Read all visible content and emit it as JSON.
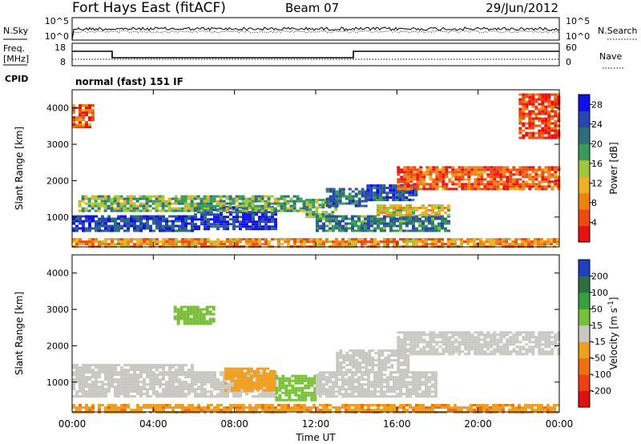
{
  "header": {
    "station": "Fort Hays East (fitACF)",
    "beam": "Beam 07",
    "date": "29/Jun/2012"
  },
  "noise_panel": {
    "left_label": "N.Sky",
    "right_label": "N.Search",
    "left_ticks": [
      "10^5",
      "10^0"
    ],
    "right_ticks": [
      "10^5",
      "10^0"
    ]
  },
  "freq_panel": {
    "left_label_1": "Freq.",
    "left_label_2": "[MHz]",
    "right_label": "Nave",
    "left_ticks": [
      "18",
      "8"
    ],
    "right_ticks": [
      "60",
      "0"
    ]
  },
  "cpid_panel": {
    "label": "CPID",
    "text": "normal (fast) 151 IF"
  },
  "chart_data": [
    {
      "type": "heatmap",
      "title": "",
      "xlabel": "Time UT",
      "ylabel": "Slant Range [km]",
      "x_ticks": [
        "00:00",
        "04:00",
        "08:00",
        "12:00",
        "16:00",
        "20:00",
        "00:00"
      ],
      "y_ticks": [
        "1000",
        "2000",
        "3000",
        "4000"
      ],
      "xlim_hours": [
        0,
        24
      ],
      "ylim_km": [
        180,
        4500
      ],
      "colorbar": {
        "label": "Power [dB]",
        "ticks": [
          "4",
          "8",
          "12",
          "16",
          "20",
          "24",
          "28"
        ],
        "range": [
          0,
          30
        ],
        "colors": [
          "#1010e8",
          "#2848b0",
          "#2f6e78",
          "#3a9a58",
          "#9ec63e",
          "#f0b020",
          "#f08010",
          "#ee4a10",
          "#e81010"
        ]
      },
      "bands": [
        {
          "t": [
            0.0,
            6.0
          ],
          "r": [
            600,
            1050
          ],
          "value": 25
        },
        {
          "t": [
            6.0,
            10.0
          ],
          "r": [
            700,
            1300
          ],
          "value": 27
        },
        {
          "t": [
            0.3,
            11.5
          ],
          "r": [
            1200,
            1600
          ],
          "value": 17
        },
        {
          "t": [
            11.5,
            13.0
          ],
          "r": [
            1000,
            1500
          ],
          "value": 16
        },
        {
          "t": [
            12.5,
            14.5
          ],
          "r": [
            1300,
            1800
          ],
          "value": 22
        },
        {
          "t": [
            14.5,
            17.0
          ],
          "r": [
            1500,
            1900
          ],
          "value": 24
        },
        {
          "t": [
            12.0,
            18.5
          ],
          "r": [
            650,
            1050
          ],
          "value": 21
        },
        {
          "t": [
            15.0,
            18.5
          ],
          "r": [
            1050,
            1350
          ],
          "value": 12
        },
        {
          "t": [
            16.0,
            24.0
          ],
          "r": [
            1800,
            2400
          ],
          "value": 6
        },
        {
          "t": [
            22.0,
            24.0
          ],
          "r": [
            3200,
            4400
          ],
          "value": 4
        },
        {
          "t": [
            0.0,
            1.0
          ],
          "r": [
            3500,
            4100
          ],
          "value": 6
        },
        {
          "t": [
            0.0,
            24.0
          ],
          "r": [
            180,
            420
          ],
          "value": 9
        }
      ]
    },
    {
      "type": "heatmap",
      "title": "",
      "xlabel": "Time UT",
      "ylabel": "Slant Range [km]",
      "x_ticks": [
        "00:00",
        "04:00",
        "08:00",
        "12:00",
        "16:00",
        "20:00",
        "00:00"
      ],
      "y_ticks": [
        "1000",
        "2000",
        "3000",
        "4000"
      ],
      "xlim_hours": [
        0,
        24
      ],
      "ylim_km": [
        180,
        4500
      ],
      "colorbar": {
        "label": "Velocity [m s^-1]",
        "ticks": [
          "200",
          "100",
          "50",
          "15",
          "-15",
          "-50",
          "-100",
          "-200"
        ],
        "range": [
          -250,
          250
        ],
        "colors": [
          "#2040c0",
          "#2e7040",
          "#36a040",
          "#78c038",
          "#c8c8c0",
          "#f0a020",
          "#f07010",
          "#ee4010",
          "#e01010"
        ]
      },
      "bands": [
        {
          "t": [
            0.0,
            6.0
          ],
          "r": [
            600,
            1500
          ],
          "value": 0
        },
        {
          "t": [
            6.0,
            10.0
          ],
          "r": [
            600,
            1300
          ],
          "value": 20
        },
        {
          "t": [
            7.5,
            10.0
          ],
          "r": [
            800,
            1400
          ],
          "value": -60
        },
        {
          "t": [
            10.0,
            12.0
          ],
          "r": [
            500,
            1200
          ],
          "value": 40
        },
        {
          "t": [
            12.0,
            18.0
          ],
          "r": [
            600,
            1300
          ],
          "value": 0
        },
        {
          "t": [
            13.0,
            16.5
          ],
          "r": [
            1300,
            1900
          ],
          "value": 0
        },
        {
          "t": [
            16.0,
            24.0
          ],
          "r": [
            1800,
            2400
          ],
          "value": 0
        },
        {
          "t": [
            5.0,
            7.0
          ],
          "r": [
            2600,
            3100
          ],
          "value": 60
        },
        {
          "t": [
            0.0,
            24.0
          ],
          "r": [
            180,
            400
          ],
          "value": -80
        }
      ]
    }
  ]
}
